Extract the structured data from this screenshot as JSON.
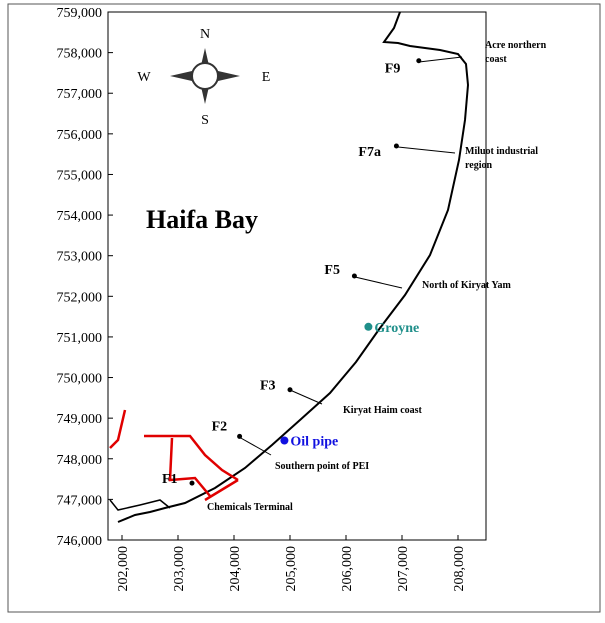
{
  "chart_data": {
    "type": "map",
    "title": "Haifa Bay",
    "compass": {
      "n": "N",
      "s": "S",
      "e": "E",
      "w": "W"
    },
    "xlim": [
      201750,
      208500
    ],
    "ylim": [
      746000,
      759000
    ],
    "xticks": [
      {
        "value": 202000,
        "label": "202,000"
      },
      {
        "value": 203000,
        "label": "203,000"
      },
      {
        "value": 204000,
        "label": "204,000"
      },
      {
        "value": 205000,
        "label": "205,000"
      },
      {
        "value": 206000,
        "label": "206,000"
      },
      {
        "value": 207000,
        "label": "207,000"
      },
      {
        "value": 208000,
        "label": "208,000"
      }
    ],
    "yticks": [
      {
        "value": 746000,
        "label": "746,000"
      },
      {
        "value": 747000,
        "label": "747,000"
      },
      {
        "value": 748000,
        "label": "748,000"
      },
      {
        "value": 749000,
        "label": "749,000"
      },
      {
        "value": 750000,
        "label": "750,000"
      },
      {
        "value": 751000,
        "label": "751,000"
      },
      {
        "value": 752000,
        "label": "752,000"
      },
      {
        "value": 753000,
        "label": "753,000"
      },
      {
        "value": 754000,
        "label": "754,000"
      },
      {
        "value": 755000,
        "label": "755,000"
      },
      {
        "value": 756000,
        "label": "756,000"
      },
      {
        "value": 757000,
        "label": "757,000"
      },
      {
        "value": 758000,
        "label": "758,000"
      },
      {
        "value": 759000,
        "label": "759,000"
      }
    ],
    "sites": [
      {
        "label": "F9",
        "x": 207300,
        "y": 757800
      },
      {
        "label": "F7a",
        "x": 206900,
        "y": 755700
      },
      {
        "label": "F5",
        "x": 206150,
        "y": 752500
      },
      {
        "label": "F3",
        "x": 205000,
        "y": 749700
      },
      {
        "label": "F2",
        "x": 204100,
        "y": 748550
      },
      {
        "label": "F1",
        "x": 203250,
        "y": 747400
      }
    ],
    "features": [
      {
        "label": "Groyne",
        "color": "#1f8f8a",
        "x": 206400,
        "y": 751250
      },
      {
        "label": "Oil pipe",
        "color": "#1010e0",
        "x": 204900,
        "y": 748450
      }
    ],
    "callouts": [
      "Acre northern coast",
      "Miluot industrial region",
      "North of Kiryat Yam",
      "Kiryat Haim coast",
      "Southern point of PEI",
      "Chemicals Terminal"
    ]
  }
}
